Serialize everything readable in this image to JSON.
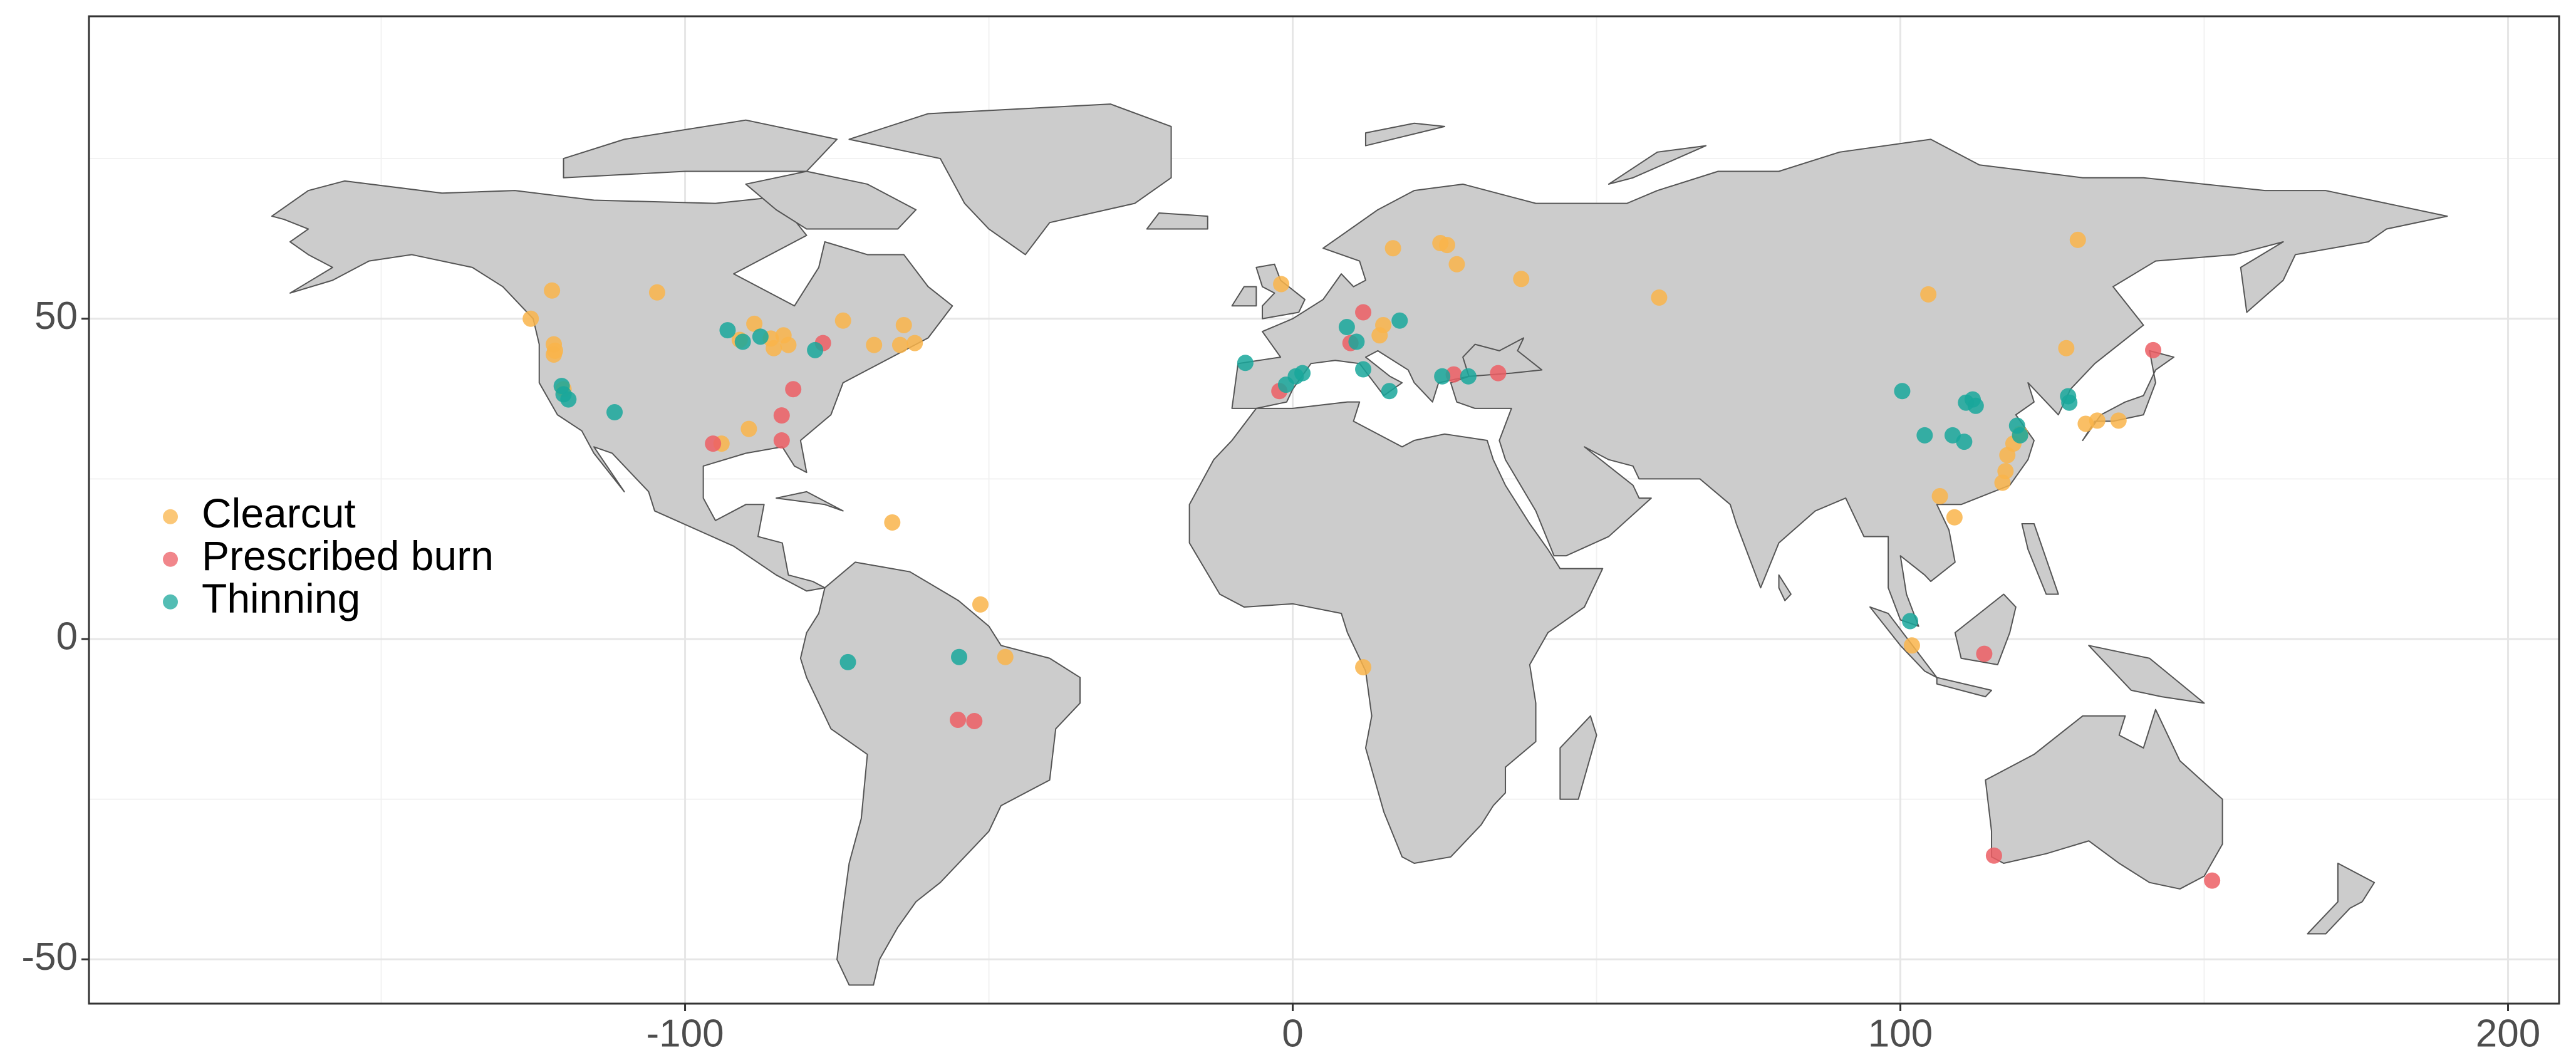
{
  "chart_data": {
    "type": "scatter",
    "xlim": [
      -198.1,
      208.4
    ],
    "ylim": [
      -56.9,
      97.2
    ],
    "xticks": [
      -100,
      0,
      100,
      200
    ],
    "yticks": [
      -50,
      0,
      50
    ],
    "grid": true,
    "legend": "left",
    "series": [
      {
        "name": "Clearcut",
        "color": "#F9B44A",
        "x": [
          -125.4,
          -121.9,
          -121.6,
          -121.4,
          -121.6,
          -104.6,
          -120,
          -94,
          -89.5,
          -91,
          -88.6,
          -85.4,
          -83.8,
          -83,
          -85.9,
          -74,
          -68.9,
          -64,
          -64.6,
          -62.2,
          -65.9,
          -51.4,
          -47.3,
          -1.9,
          11.6,
          16.5,
          24.3,
          25.4,
          27,
          14.3,
          14.9,
          37.6,
          60.3,
          104.6,
          129.2,
          127.3,
          130.5,
          132.4,
          135.9,
          106.5,
          108.9,
          117.3,
          117.6,
          118.6,
          119.7,
          116.8,
          101.9
        ],
        "values": [
          50,
          54.4,
          46,
          45,
          44.4,
          54.1,
          39,
          30.5,
          32.8,
          46.7,
          49.2,
          45.4,
          47.4,
          45.9,
          46.9,
          49.7,
          45.9,
          49,
          45.9,
          46.2,
          18.2,
          5.4,
          -2.8,
          55.4,
          -4.4,
          61,
          61.8,
          61.5,
          58.5,
          47.4,
          49,
          56.2,
          53.3,
          53.8,
          62.3,
          45.4,
          33.6,
          34.1,
          34.1,
          22.3,
          19,
          26.2,
          28.7,
          30.5,
          32,
          24.4,
          -1
        ]
      },
      {
        "name": "Prescribed burn",
        "color": "#EC5E64",
        "x": [
          -95.4,
          -84.1,
          -84.1,
          -82.2,
          -77.3,
          -55.1,
          -52.4,
          -2.2,
          11.6,
          9.5,
          26.5,
          33.8,
          141.6,
          113.8,
          115.4,
          151.3
        ],
        "values": [
          30.5,
          31,
          34.9,
          39,
          46.2,
          -12.6,
          -12.8,
          38.7,
          51,
          46.2,
          41.3,
          41.5,
          45.1,
          -2.3,
          -33.8,
          -37.7
        ]
      },
      {
        "name": "Thinning",
        "color": "#19A79B",
        "x": [
          -120.3,
          -119.2,
          -120,
          -111.6,
          -93,
          -90.5,
          -87.6,
          -78.6,
          -73.2,
          -54.9,
          -7.8,
          -1.1,
          0.5,
          1.6,
          8.9,
          10.5,
          11.6,
          15.9,
          17.6,
          24.6,
          28.9,
          100.3,
          104,
          108.6,
          110.5,
          110.8,
          111.9,
          112.4,
          119.2,
          119.7,
          127.6,
          127.8,
          101.6
        ],
        "values": [
          39.5,
          37.4,
          38.2,
          35.4,
          48.2,
          46.4,
          47.2,
          45.1,
          -3.6,
          -2.8,
          43.1,
          39.7,
          41,
          41.5,
          48.7,
          46.4,
          42.1,
          38.7,
          49.7,
          41,
          41,
          38.7,
          31.8,
          31.8,
          30.8,
          36.9,
          37.4,
          36.4,
          33.3,
          31.8,
          37.9,
          36.9,
          2.8
        ]
      }
    ]
  }
}
